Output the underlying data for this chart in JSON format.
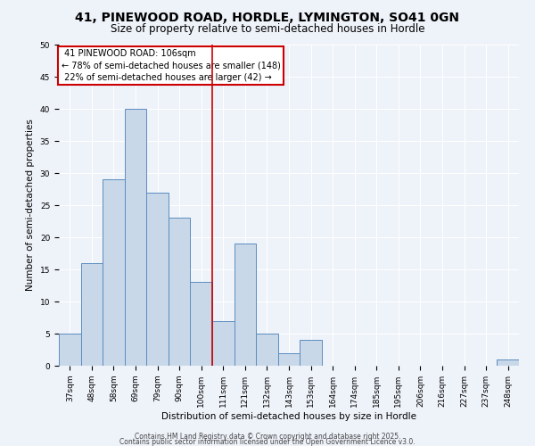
{
  "title": "41, PINEWOOD ROAD, HORDLE, LYMINGTON, SO41 0GN",
  "subtitle": "Size of property relative to semi-detached houses in Hordle",
  "xlabel": "Distribution of semi-detached houses by size in Hordle",
  "ylabel": "Number of semi-detached properties",
  "categories": [
    "37sqm",
    "48sqm",
    "58sqm",
    "69sqm",
    "79sqm",
    "90sqm",
    "100sqm",
    "111sqm",
    "121sqm",
    "132sqm",
    "143sqm",
    "153sqm",
    "164sqm",
    "174sqm",
    "185sqm",
    "195sqm",
    "206sqm",
    "216sqm",
    "227sqm",
    "237sqm",
    "248sqm"
  ],
  "values": [
    5,
    16,
    29,
    40,
    27,
    23,
    13,
    7,
    19,
    5,
    2,
    4,
    0,
    0,
    0,
    0,
    0,
    0,
    0,
    0,
    1
  ],
  "bar_color": "#c8d8e8",
  "bar_edge_color": "#5b8dc0",
  "subject_line_index": 6.5,
  "subject_label": "41 PINEWOOD ROAD: 106sqm",
  "pct_smaller": 78,
  "n_smaller": 148,
  "pct_larger": 22,
  "n_larger": 42,
  "annotation_box_color": "#cc0000",
  "vline_color": "#cc0000",
  "ylim": [
    0,
    50
  ],
  "yticks": [
    0,
    5,
    10,
    15,
    20,
    25,
    30,
    35,
    40,
    45,
    50
  ],
  "background_color": "#eef2f9",
  "grid_color": "#ffffff",
  "footer_line1": "Contains HM Land Registry data © Crown copyright and database right 2025.",
  "footer_line2": "Contains public sector information licensed under the Open Government Licence v3.0.",
  "title_fontsize": 10,
  "subtitle_fontsize": 8.5,
  "axis_label_fontsize": 7.5,
  "tick_fontsize": 6.5,
  "annotation_fontsize": 7,
  "footer_fontsize": 5.5
}
